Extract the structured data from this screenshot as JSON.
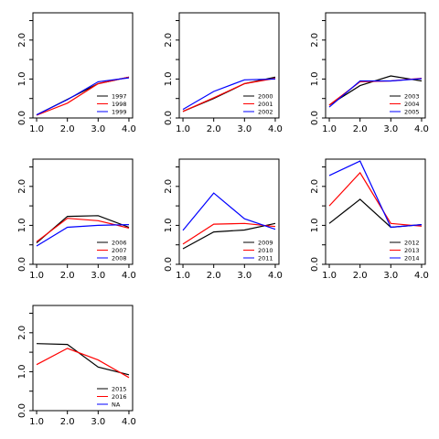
{
  "chart_data": [
    {
      "type": "line",
      "categories": [
        "1.0",
        "2.0",
        "3.0",
        "4.0"
      ],
      "x": [
        1,
        2,
        3,
        4
      ],
      "ylim": [
        0,
        2.7
      ],
      "yticks": [
        "0.0",
        "1.0",
        "2.0"
      ],
      "legend_position": "bottom-right",
      "series": [
        {
          "name": "1997",
          "color": "#000000",
          "values": [
            0.08,
            0.48,
            0.88,
            1.05
          ]
        },
        {
          "name": "1998",
          "color": "#ff0000",
          "values": [
            0.07,
            0.38,
            0.88,
            1.05
          ]
        },
        {
          "name": "1999",
          "color": "#0000ff",
          "values": [
            0.08,
            0.47,
            0.93,
            1.03
          ]
        }
      ]
    },
    {
      "type": "line",
      "categories": [
        "1.0",
        "2.0",
        "3.0",
        "4.0"
      ],
      "x": [
        1,
        2,
        3,
        4
      ],
      "ylim": [
        0,
        2.7
      ],
      "yticks": [
        "0.0",
        "1.0",
        "2.0"
      ],
      "legend_position": "bottom-right",
      "series": [
        {
          "name": "2000",
          "color": "#000000",
          "values": [
            0.17,
            0.5,
            0.88,
            1.05
          ]
        },
        {
          "name": "2001",
          "color": "#ff0000",
          "values": [
            0.17,
            0.52,
            0.88,
            1.02
          ]
        },
        {
          "name": "2002",
          "color": "#0000ff",
          "values": [
            0.22,
            0.68,
            0.98,
            1.0
          ]
        }
      ]
    },
    {
      "type": "line",
      "categories": [
        "1.0",
        "2.0",
        "3.0",
        "4.0"
      ],
      "x": [
        1,
        2,
        3,
        4
      ],
      "ylim": [
        0,
        2.7
      ],
      "yticks": [
        "0.0",
        "1.0",
        "2.0"
      ],
      "legend_position": "bottom-right",
      "series": [
        {
          "name": "2003",
          "color": "#000000",
          "values": [
            0.33,
            0.83,
            1.08,
            0.95
          ]
        },
        {
          "name": "2004",
          "color": "#ff0000",
          "values": [
            0.33,
            0.93,
            0.95,
            1.02
          ]
        },
        {
          "name": "2005",
          "color": "#0000ff",
          "values": [
            0.28,
            0.95,
            0.95,
            1.01
          ]
        }
      ]
    },
    {
      "type": "line",
      "categories": [
        "1.0",
        "2.0",
        "3.0",
        "4.0"
      ],
      "x": [
        1,
        2,
        3,
        4
      ],
      "ylim": [
        0,
        2.7
      ],
      "yticks": [
        "0.0",
        "1.0",
        "2.0"
      ],
      "legend_position": "bottom-right",
      "series": [
        {
          "name": "2006",
          "color": "#000000",
          "values": [
            0.55,
            1.23,
            1.25,
            0.95
          ]
        },
        {
          "name": "2007",
          "color": "#ff0000",
          "values": [
            0.58,
            1.18,
            1.12,
            0.93
          ]
        },
        {
          "name": "2008",
          "color": "#0000ff",
          "values": [
            0.47,
            0.95,
            1.0,
            1.02
          ]
        }
      ]
    },
    {
      "type": "line",
      "categories": [
        "1.0",
        "2.0",
        "3.0",
        "4.0"
      ],
      "x": [
        1,
        2,
        3,
        4
      ],
      "ylim": [
        0,
        2.7
      ],
      "yticks": [
        "0.0",
        "1.0",
        "2.0"
      ],
      "legend_position": "bottom-right",
      "series": [
        {
          "name": "2009",
          "color": "#000000",
          "values": [
            0.4,
            0.83,
            0.88,
            1.05
          ]
        },
        {
          "name": "2010",
          "color": "#ff0000",
          "values": [
            0.52,
            1.03,
            1.05,
            0.97
          ]
        },
        {
          "name": "2011",
          "color": "#0000ff",
          "values": [
            0.87,
            1.83,
            1.17,
            0.9
          ]
        }
      ]
    },
    {
      "type": "line",
      "categories": [
        "1.0",
        "2.0",
        "3.0",
        "4.0"
      ],
      "x": [
        1,
        2,
        3,
        4
      ],
      "ylim": [
        0,
        2.7
      ],
      "yticks": [
        "0.0",
        "1.0",
        "2.0"
      ],
      "legend_position": "bottom-right",
      "series": [
        {
          "name": "2012",
          "color": "#000000",
          "values": [
            1.05,
            1.67,
            0.95,
            1.02
          ]
        },
        {
          "name": "2013",
          "color": "#ff0000",
          "values": [
            1.5,
            2.35,
            1.05,
            0.98
          ]
        },
        {
          "name": "2014",
          "color": "#0000ff",
          "values": [
            2.28,
            2.65,
            0.95,
            1.02
          ]
        }
      ]
    },
    {
      "type": "line",
      "categories": [
        "1.0",
        "2.0",
        "3.0",
        "4.0"
      ],
      "x": [
        1,
        2,
        3,
        4
      ],
      "ylim": [
        0,
        2.7
      ],
      "yticks": [
        "0.0",
        "1.0",
        "2.0"
      ],
      "legend_position": "bottom-right",
      "series": [
        {
          "name": "2015",
          "color": "#000000",
          "values": [
            1.72,
            1.7,
            1.12,
            0.92
          ]
        },
        {
          "name": "2016",
          "color": "#ff0000",
          "values": [
            1.18,
            1.6,
            1.3,
            0.85
          ]
        },
        {
          "name": "NA",
          "color": "#0000ff",
          "values": [
            null,
            null,
            null,
            null
          ]
        }
      ]
    }
  ]
}
